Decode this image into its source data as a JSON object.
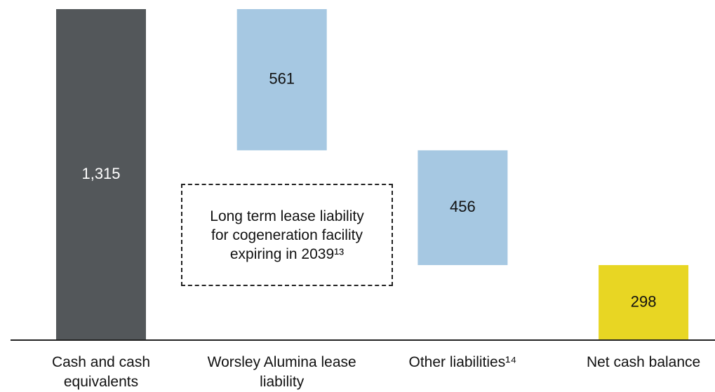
{
  "chart_data": {
    "type": "waterfall",
    "categories": [
      "Cash and cash equivalents",
      "Worsley Alumina lease liability",
      "Other liabilities¹⁴",
      "Net cash balance"
    ],
    "values": [
      1315,
      -561,
      -456,
      298
    ],
    "value_labels": [
      "1,315",
      "561",
      "456",
      "298"
    ],
    "measure": [
      "absolute",
      "relative",
      "relative",
      "total"
    ],
    "colors": [
      "#53575a",
      "#a6c8e2",
      "#a6c8e2",
      "#e8d623"
    ],
    "label_colors": [
      "#ffffff",
      "#111111",
      "#111111",
      "#111111"
    ],
    "annotation": "Long term lease liability for cogeneration facility expiring in 2039¹³"
  }
}
